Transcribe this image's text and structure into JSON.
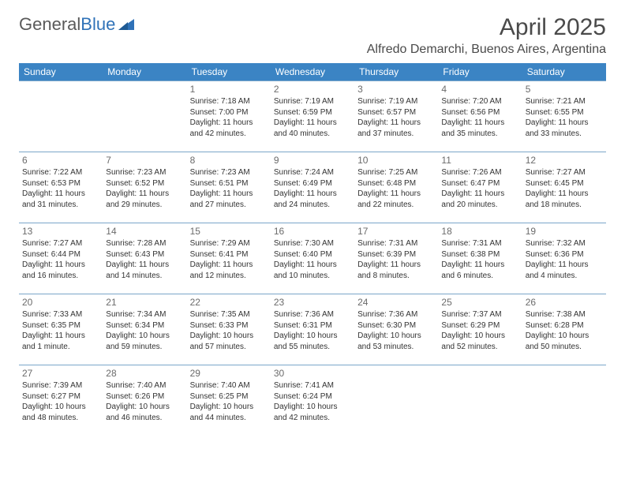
{
  "brand": {
    "general": "General",
    "blue": "Blue"
  },
  "title": "April 2025",
  "location": "Alfredo Demarchi, Buenos Aires, Argentina",
  "colors": {
    "header_bg": "#3b84c4",
    "header_text": "#ffffff",
    "rule": "#7ba6c9",
    "daynum": "#6b6b6b",
    "body_text": "#333333",
    "title_text": "#4a4a4a"
  },
  "days_of_week": [
    "Sunday",
    "Monday",
    "Tuesday",
    "Wednesday",
    "Thursday",
    "Friday",
    "Saturday"
  ],
  "weeks": [
    [
      null,
      null,
      {
        "n": "1",
        "sr": "Sunrise: 7:18 AM",
        "ss": "Sunset: 7:00 PM",
        "dl": "Daylight: 11 hours and 42 minutes."
      },
      {
        "n": "2",
        "sr": "Sunrise: 7:19 AM",
        "ss": "Sunset: 6:59 PM",
        "dl": "Daylight: 11 hours and 40 minutes."
      },
      {
        "n": "3",
        "sr": "Sunrise: 7:19 AM",
        "ss": "Sunset: 6:57 PM",
        "dl": "Daylight: 11 hours and 37 minutes."
      },
      {
        "n": "4",
        "sr": "Sunrise: 7:20 AM",
        "ss": "Sunset: 6:56 PM",
        "dl": "Daylight: 11 hours and 35 minutes."
      },
      {
        "n": "5",
        "sr": "Sunrise: 7:21 AM",
        "ss": "Sunset: 6:55 PM",
        "dl": "Daylight: 11 hours and 33 minutes."
      }
    ],
    [
      {
        "n": "6",
        "sr": "Sunrise: 7:22 AM",
        "ss": "Sunset: 6:53 PM",
        "dl": "Daylight: 11 hours and 31 minutes."
      },
      {
        "n": "7",
        "sr": "Sunrise: 7:23 AM",
        "ss": "Sunset: 6:52 PM",
        "dl": "Daylight: 11 hours and 29 minutes."
      },
      {
        "n": "8",
        "sr": "Sunrise: 7:23 AM",
        "ss": "Sunset: 6:51 PM",
        "dl": "Daylight: 11 hours and 27 minutes."
      },
      {
        "n": "9",
        "sr": "Sunrise: 7:24 AM",
        "ss": "Sunset: 6:49 PM",
        "dl": "Daylight: 11 hours and 24 minutes."
      },
      {
        "n": "10",
        "sr": "Sunrise: 7:25 AM",
        "ss": "Sunset: 6:48 PM",
        "dl": "Daylight: 11 hours and 22 minutes."
      },
      {
        "n": "11",
        "sr": "Sunrise: 7:26 AM",
        "ss": "Sunset: 6:47 PM",
        "dl": "Daylight: 11 hours and 20 minutes."
      },
      {
        "n": "12",
        "sr": "Sunrise: 7:27 AM",
        "ss": "Sunset: 6:45 PM",
        "dl": "Daylight: 11 hours and 18 minutes."
      }
    ],
    [
      {
        "n": "13",
        "sr": "Sunrise: 7:27 AM",
        "ss": "Sunset: 6:44 PM",
        "dl": "Daylight: 11 hours and 16 minutes."
      },
      {
        "n": "14",
        "sr": "Sunrise: 7:28 AM",
        "ss": "Sunset: 6:43 PM",
        "dl": "Daylight: 11 hours and 14 minutes."
      },
      {
        "n": "15",
        "sr": "Sunrise: 7:29 AM",
        "ss": "Sunset: 6:41 PM",
        "dl": "Daylight: 11 hours and 12 minutes."
      },
      {
        "n": "16",
        "sr": "Sunrise: 7:30 AM",
        "ss": "Sunset: 6:40 PM",
        "dl": "Daylight: 11 hours and 10 minutes."
      },
      {
        "n": "17",
        "sr": "Sunrise: 7:31 AM",
        "ss": "Sunset: 6:39 PM",
        "dl": "Daylight: 11 hours and 8 minutes."
      },
      {
        "n": "18",
        "sr": "Sunrise: 7:31 AM",
        "ss": "Sunset: 6:38 PM",
        "dl": "Daylight: 11 hours and 6 minutes."
      },
      {
        "n": "19",
        "sr": "Sunrise: 7:32 AM",
        "ss": "Sunset: 6:36 PM",
        "dl": "Daylight: 11 hours and 4 minutes."
      }
    ],
    [
      {
        "n": "20",
        "sr": "Sunrise: 7:33 AM",
        "ss": "Sunset: 6:35 PM",
        "dl": "Daylight: 11 hours and 1 minute."
      },
      {
        "n": "21",
        "sr": "Sunrise: 7:34 AM",
        "ss": "Sunset: 6:34 PM",
        "dl": "Daylight: 10 hours and 59 minutes."
      },
      {
        "n": "22",
        "sr": "Sunrise: 7:35 AM",
        "ss": "Sunset: 6:33 PM",
        "dl": "Daylight: 10 hours and 57 minutes."
      },
      {
        "n": "23",
        "sr": "Sunrise: 7:36 AM",
        "ss": "Sunset: 6:31 PM",
        "dl": "Daylight: 10 hours and 55 minutes."
      },
      {
        "n": "24",
        "sr": "Sunrise: 7:36 AM",
        "ss": "Sunset: 6:30 PM",
        "dl": "Daylight: 10 hours and 53 minutes."
      },
      {
        "n": "25",
        "sr": "Sunrise: 7:37 AM",
        "ss": "Sunset: 6:29 PM",
        "dl": "Daylight: 10 hours and 52 minutes."
      },
      {
        "n": "26",
        "sr": "Sunrise: 7:38 AM",
        "ss": "Sunset: 6:28 PM",
        "dl": "Daylight: 10 hours and 50 minutes."
      }
    ],
    [
      {
        "n": "27",
        "sr": "Sunrise: 7:39 AM",
        "ss": "Sunset: 6:27 PM",
        "dl": "Daylight: 10 hours and 48 minutes."
      },
      {
        "n": "28",
        "sr": "Sunrise: 7:40 AM",
        "ss": "Sunset: 6:26 PM",
        "dl": "Daylight: 10 hours and 46 minutes."
      },
      {
        "n": "29",
        "sr": "Sunrise: 7:40 AM",
        "ss": "Sunset: 6:25 PM",
        "dl": "Daylight: 10 hours and 44 minutes."
      },
      {
        "n": "30",
        "sr": "Sunrise: 7:41 AM",
        "ss": "Sunset: 6:24 PM",
        "dl": "Daylight: 10 hours and 42 minutes."
      },
      null,
      null,
      null
    ]
  ]
}
